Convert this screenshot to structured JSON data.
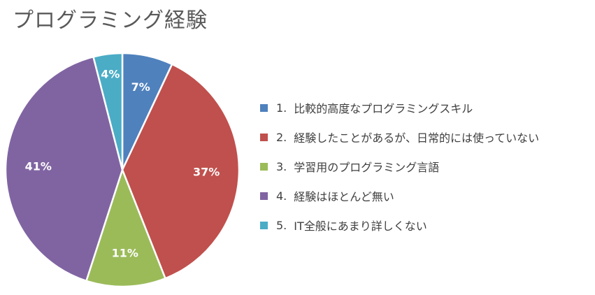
{
  "chart_data": {
    "type": "pie",
    "title": "プログラミング経験",
    "slices": [
      {
        "num": "1.",
        "label": "比較的高度なプログラミングスキル",
        "value": 7,
        "value_label": "7%",
        "color": "#4F81BD"
      },
      {
        "num": "2.",
        "label": "経験したことがあるが、日常的には使っていない",
        "value": 37,
        "value_label": "37%",
        "color": "#C0504D"
      },
      {
        "num": "3.",
        "label": "学習用のプログラミング言語",
        "value": 11,
        "value_label": "11%",
        "color": "#9BBB59"
      },
      {
        "num": "4.",
        "label": "経験はほとんど無い",
        "value": 41,
        "value_label": "41%",
        "color": "#8064A2"
      },
      {
        "num": "5.",
        "label": "IT全般にあまり詳しくない",
        "value": 4,
        "value_label": "4%",
        "color": "#4BACC6"
      }
    ],
    "legend_position": "right"
  }
}
